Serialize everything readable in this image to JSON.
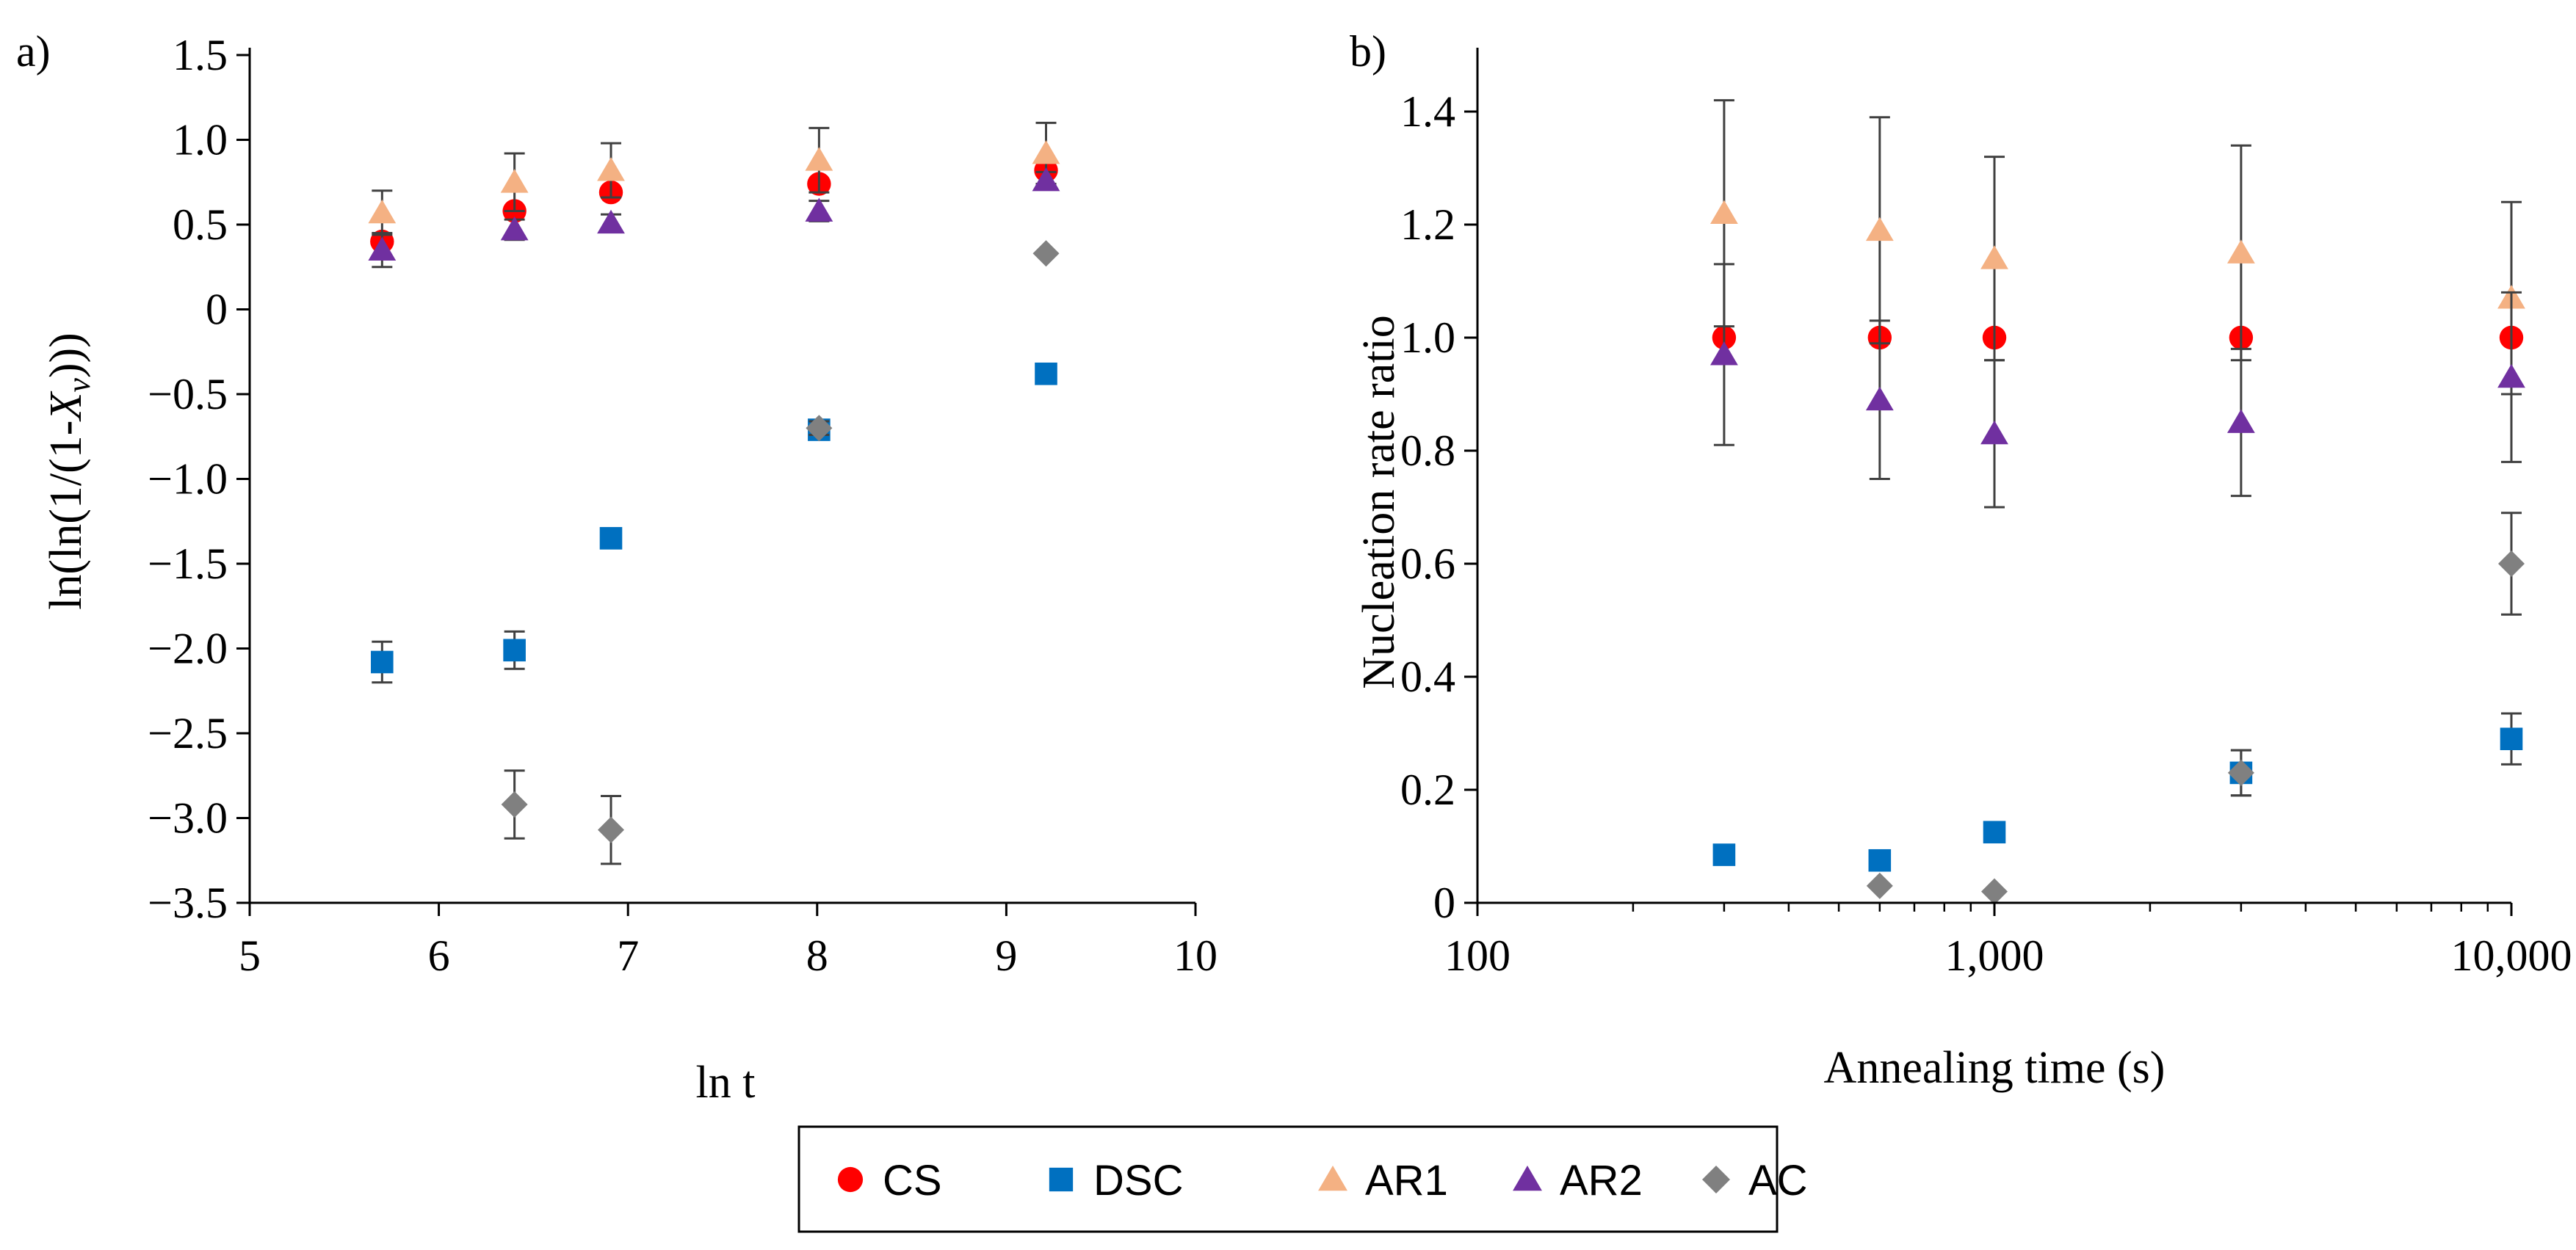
{
  "colors": {
    "CS": "#ff0000",
    "DSC": "#0070c0",
    "AR1": "#f4b183",
    "AR2": "#7030a0",
    "AC": "#808080",
    "errorbar": "#404040",
    "axis": "#000000"
  },
  "legend": {
    "placement": "bottom-center",
    "entries": [
      {
        "series": "CS",
        "label": "CS",
        "marker": "circle"
      },
      {
        "series": "DSC",
        "label": "DSC",
        "marker": "square"
      },
      {
        "series": "AR1",
        "label": "AR1",
        "marker": "triangle"
      },
      {
        "series": "AR2",
        "label": "AR2",
        "marker": "triangle"
      },
      {
        "series": "AC",
        "label": "AC",
        "marker": "diamond"
      }
    ]
  },
  "chart_data": [
    {
      "panel_label": "a)",
      "type": "scatter",
      "xlabel": "ln t",
      "ylabel": {
        "prefix": "ln(ln(1/(1-",
        "var": "X",
        "sub": "v",
        "suffix": ")))"
      },
      "xlim": [
        5,
        10
      ],
      "ylim": [
        -3.5,
        1.5
      ],
      "x_scale": "linear",
      "xticks": [
        5,
        6,
        7,
        8,
        9,
        10
      ],
      "xtick_labels": [
        "5",
        "6",
        "7",
        "8",
        "9",
        "10"
      ],
      "yticks": [
        1.5,
        1.0,
        0.5,
        0,
        -0.5,
        -1.0,
        -1.5,
        -2.0,
        -2.5,
        -3.0,
        -3.5
      ],
      "ytick_labels": [
        "1.5",
        "1.0",
        "0.5",
        "0",
        "−0.5",
        "−1.0",
        "−1.5",
        "−2.0",
        "−2.5",
        "−3.0",
        "−3.5"
      ],
      "grid": false,
      "series": [
        {
          "name": "CS",
          "marker": "circle",
          "x": [
            5.7,
            6.4,
            6.91,
            8.01,
            9.21
          ],
          "y": [
            0.4,
            0.58,
            0.69,
            0.74,
            0.82
          ],
          "err": [
            0,
            0,
            0,
            0,
            0
          ]
        },
        {
          "name": "DSC",
          "marker": "square",
          "x": [
            5.7,
            6.4,
            6.91,
            8.01,
            9.21
          ],
          "y": [
            -2.08,
            -2.01,
            -1.35,
            -0.71,
            -0.38
          ],
          "err": [
            0.12,
            0.11,
            0.05,
            0.04,
            0
          ]
        },
        {
          "name": "AR1",
          "marker": "triangle",
          "x": [
            5.7,
            6.4,
            6.91,
            8.01,
            9.21
          ],
          "y": [
            0.57,
            0.75,
            0.82,
            0.88,
            0.92
          ],
          "err": [
            0.13,
            0.17,
            0.16,
            0.19,
            0.18
          ]
        },
        {
          "name": "AR2",
          "marker": "triangle",
          "x": [
            5.7,
            6.4,
            6.91,
            8.01,
            9.21
          ],
          "y": [
            0.35,
            0.47,
            0.51,
            0.58,
            0.76
          ],
          "err": [
            0.1,
            0.06,
            0.05,
            0.06,
            0.05
          ]
        },
        {
          "name": "AC",
          "marker": "diamond",
          "x": [
            6.4,
            6.91,
            8.01,
            9.21
          ],
          "y": [
            -2.92,
            -3.07,
            -0.7,
            0.33
          ],
          "err": [
            0.2,
            0.2,
            0.04,
            0
          ]
        }
      ]
    },
    {
      "panel_label": "b)",
      "type": "scatter",
      "xlabel": "Annealing time (s)",
      "ylabel": "Nucleation rate ratio",
      "xlim": [
        100,
        10000
      ],
      "ylim": [
        0,
        1.5
      ],
      "x_scale": "log",
      "xticks": [
        100,
        1000,
        10000
      ],
      "xtick_labels": [
        "100",
        "1,000",
        "10,000"
      ],
      "yticks": [
        0,
        0.2,
        0.4,
        0.6,
        0.8,
        1.0,
        1.2,
        1.4
      ],
      "ytick_labels": [
        "0",
        "0.2",
        "0.4",
        "0.6",
        "0.8",
        "1.0",
        "1.2",
        "1.4"
      ],
      "grid": false,
      "series": [
        {
          "name": "CS",
          "marker": "circle",
          "x": [
            300,
            600,
            1000,
            3000,
            10000
          ],
          "y": [
            1.0,
            1.0,
            1.0,
            1.0,
            1.0
          ],
          "err": [
            0,
            0,
            0,
            0,
            0
          ]
        },
        {
          "name": "DSC",
          "marker": "square",
          "x": [
            300,
            600,
            1000,
            3000,
            10000
          ],
          "y": [
            0.085,
            0.075,
            0.125,
            0.23,
            0.29
          ],
          "err": [
            0,
            0,
            0,
            0.04,
            0.045
          ]
        },
        {
          "name": "AR1",
          "marker": "triangle",
          "x": [
            300,
            600,
            1000,
            3000,
            10000
          ],
          "y": [
            1.22,
            1.19,
            1.14,
            1.15,
            1.07
          ],
          "err": [
            0.2,
            0.2,
            0.18,
            0.19,
            0.17
          ]
        },
        {
          "name": "AR2",
          "marker": "triangle",
          "x": [
            300,
            600,
            1000,
            3000,
            10000
          ],
          "y": [
            0.97,
            0.89,
            0.83,
            0.85,
            0.93
          ],
          "err": [
            0.16,
            0.14,
            0.13,
            0.13,
            0.15
          ]
        },
        {
          "name": "AC",
          "marker": "diamond",
          "x": [
            600,
            1000,
            3000,
            10000
          ],
          "y": [
            0.03,
            0.02,
            0.23,
            0.6
          ],
          "err": [
            0,
            0,
            0.04,
            0.09
          ]
        }
      ]
    }
  ]
}
